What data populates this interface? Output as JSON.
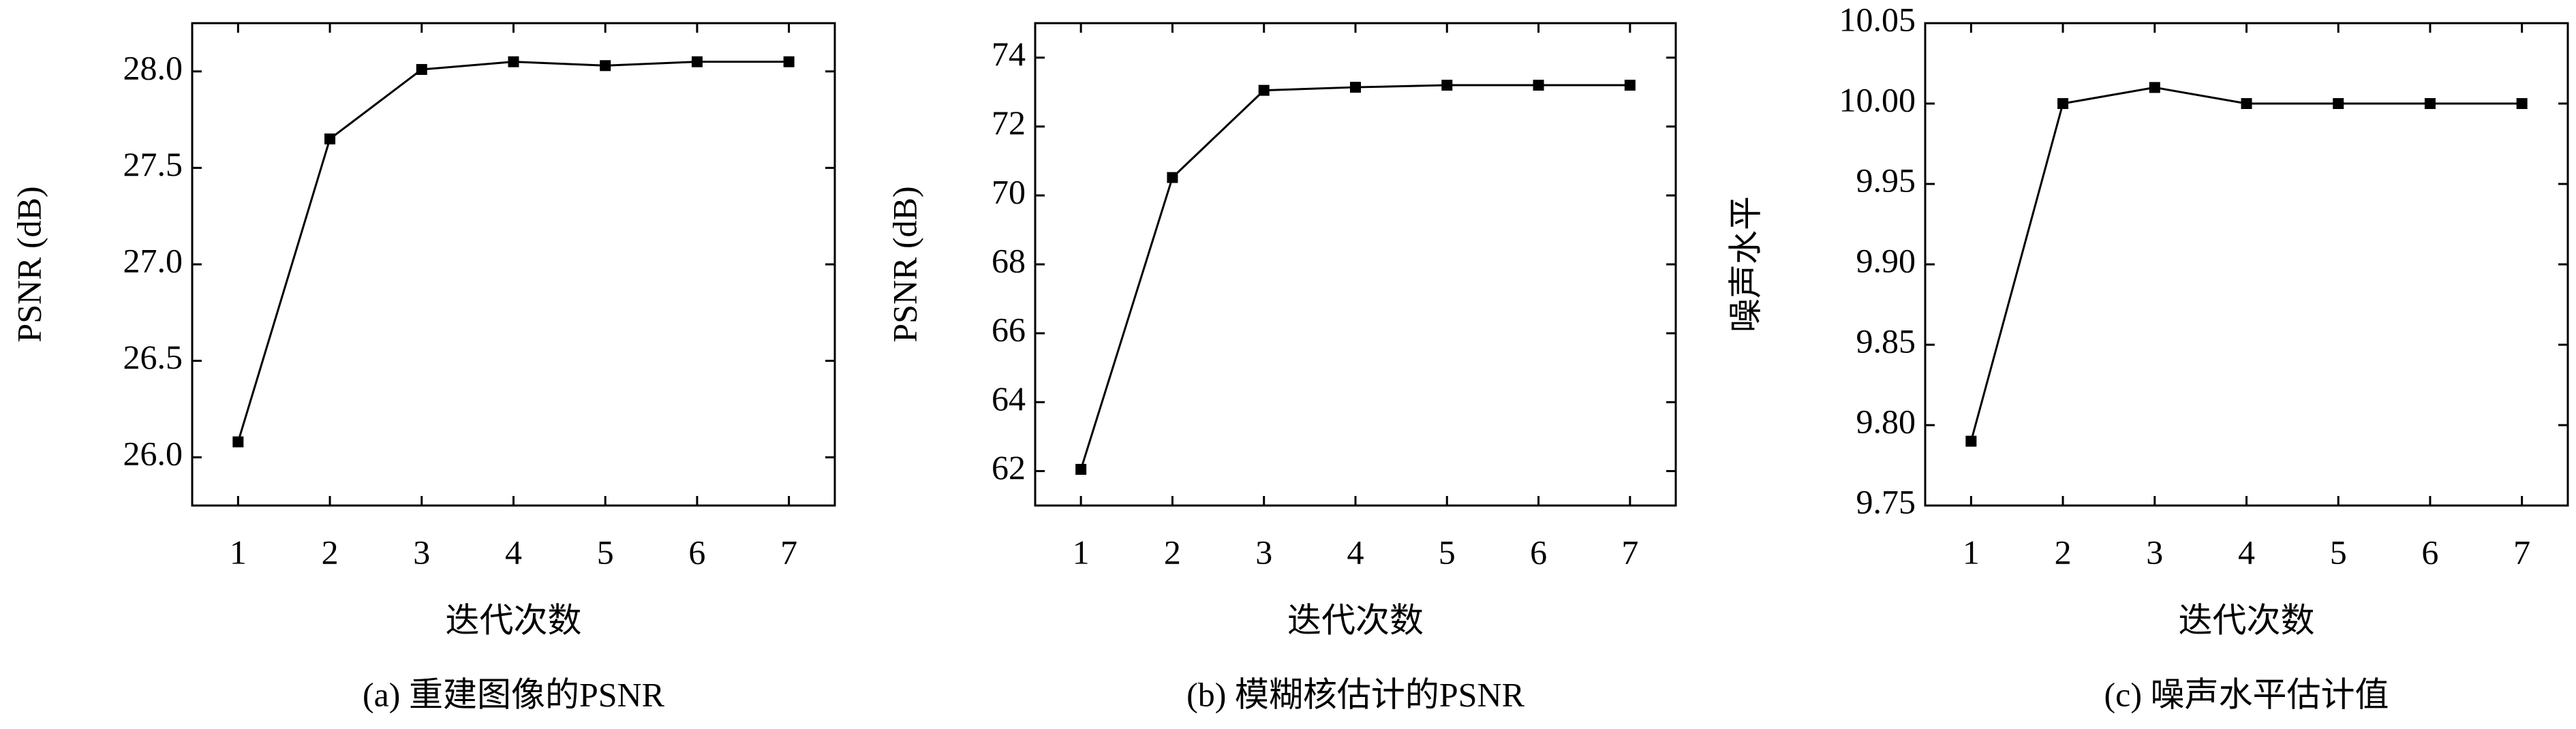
{
  "chart_data": [
    {
      "type": "line",
      "ylabel": "PSNR (dB)",
      "xlabel": "迭代次数",
      "caption": "(a) 重建图像的PSNR",
      "x": [
        1,
        2,
        3,
        4,
        5,
        6,
        7
      ],
      "values": [
        26.08,
        27.65,
        28.01,
        28.05,
        28.03,
        28.05,
        28.05
      ],
      "color": "#000000",
      "xlim": [
        0.5,
        7.5
      ],
      "xticks": [
        1,
        2,
        3,
        4,
        5,
        6,
        7
      ],
      "ylim": [
        25.75,
        28.25
      ],
      "yticks": [
        {
          "value": 26,
          "label": "26.0"
        },
        26.5,
        {
          "value": 27,
          "label": "27.0"
        },
        27.5,
        {
          "value": 28,
          "label": "28.0"
        }
      ]
    },
    {
      "type": "line",
      "ylabel": "PSNR (dB)",
      "xlabel": "迭代次数",
      "caption": "(b) 模糊核估计的PSNR",
      "x": [
        1,
        2,
        3,
        4,
        5,
        6,
        7
      ],
      "values": [
        62.05,
        70.52,
        73.05,
        73.14,
        73.2,
        73.2,
        73.2
      ],
      "color": "#000000",
      "xlim": [
        0.5,
        7.5
      ],
      "xticks": [
        1,
        2,
        3,
        4,
        5,
        6,
        7
      ],
      "ylim": [
        61,
        75
      ],
      "yticks": [
        62,
        64,
        66,
        68,
        70,
        72,
        74
      ]
    },
    {
      "type": "line",
      "ylabel": "噪声水平",
      "xlabel": "迭代次数",
      "caption": "(c) 噪声水平估计值",
      "x": [
        1,
        2,
        3,
        4,
        5,
        6,
        7
      ],
      "values": [
        9.79,
        10.0,
        10.01,
        10.0,
        10.0,
        10.0,
        10.0
      ],
      "color": "#000000",
      "xlim": [
        0.5,
        7.5
      ],
      "xticks": [
        1,
        2,
        3,
        4,
        5,
        6,
        7
      ],
      "ylim": [
        9.75,
        10.05
      ],
      "yticks": [
        9.75,
        {
          "value": 9.8,
          "label": "9.80"
        },
        9.85,
        {
          "value": 9.9,
          "label": "9.90"
        },
        9.95,
        {
          "value": 10.0,
          "label": "10.00"
        },
        10.05
      ]
    }
  ]
}
